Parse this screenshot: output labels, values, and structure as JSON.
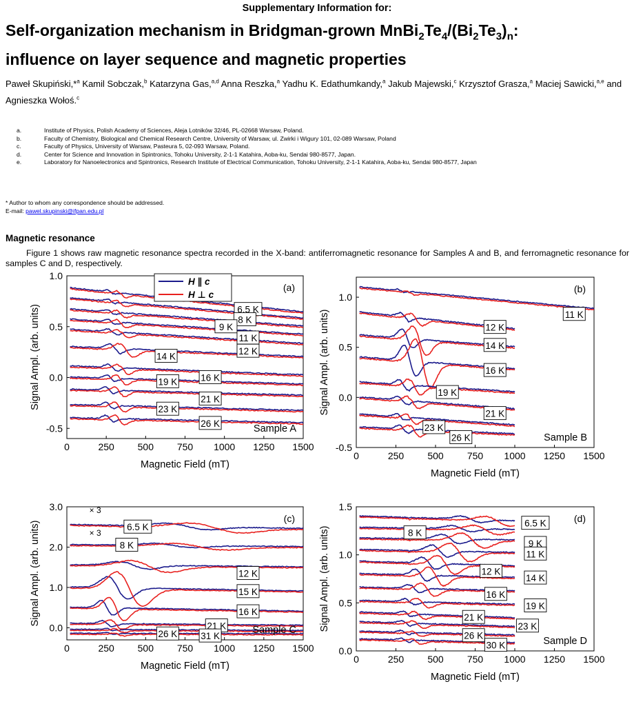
{
  "header": {
    "suptitle": "Supplementary Information for:",
    "title_line1_pre": "Self-organization mechanism in Bridgman-grown MnBi",
    "title_sub_2": "2",
    "title_te": "Te",
    "title_sub_4": "4",
    "title_mid": "/(Bi",
    "title_sub_2b": "2",
    "title_te2": "Te",
    "title_sub_3": "3",
    "title_close": ")",
    "title_sub_n": "n",
    "title_colon": ":",
    "title_line2": "influence on layer sequence and magnetic properties"
  },
  "authors": [
    {
      "name": "Paweł Skupiński,*",
      "sup": "a"
    },
    {
      "name": "Kamil Sobczak,",
      "sup": "b"
    },
    {
      "name": "Katarzyna Gas,",
      "sup": "a,d"
    },
    {
      "name": "Anna Reszka,",
      "sup": "a"
    },
    {
      "name": "Yadhu K. Edathumkandy,",
      "sup": "a"
    },
    {
      "name": "Jakub Majewski,",
      "sup": "c"
    },
    {
      "name": "Krzysztof Grasza,",
      "sup": "a"
    },
    {
      "name": "Maciej Sawicki,",
      "sup": "a,e"
    },
    {
      "name": "and Agnieszka Wołoś.",
      "sup": "c"
    }
  ],
  "affiliations": [
    {
      "key": "a.",
      "text": "Institute of Physics, Polish Academy of Sciences, Aleja Lotników 32/46, PL-02668 Warsaw, Poland."
    },
    {
      "key": "b.",
      "text": "Faculty of Chemistry, Biological and Chemical Research Centre, University of Warsaw, ul. Zwirki i Wigury 101, 02-089 Warsaw, Poland"
    },
    {
      "key": "c.",
      "text": "Faculty of Physics, University of Warsaw, Pasteura 5, 02-093 Warsaw, Poland."
    },
    {
      "key": "d.",
      "text": "Center for Science and Innovation in Spintronics, Tohoku University, 2-1-1 Katahira, Aoba-ku, Sendai 980-8577, Japan."
    },
    {
      "key": "e.",
      "text": "Laboratory for Nanoelectronics and Spintronics, Research Institute of Electrical Communication, Tohoku University, 2-1-1 Katahira, Aoba-ku, Sendai 980-8577, Japan"
    }
  ],
  "correspondence": "* Author to whom any correspondence should be addressed.",
  "email_label": "E-mail: ",
  "email": "pawel.skupinski@ifpan.edu.pl",
  "section_title": "Magnetic resonance",
  "paragraph": "Figure 1 shows raw magnetic resonance spectra recorded in the X-band: antiferromagnetic resonance for Samples  A and B, and ferromagnetic resonance for samples C and D, respectively.",
  "figure": {
    "colors": {
      "parallel": "#1a1a8c",
      "perp": "#e8201e"
    },
    "legend": {
      "parallel": "H ∥ c",
      "perp": "H ⊥ c"
    },
    "xlabel": "Magnetic Field (mT)",
    "ylabel": "Signal Ampl. (arb. units)",
    "panels": [
      {
        "id": "a",
        "panel_label": "(a)",
        "sample_label": "Sample A",
        "xlim": [
          0,
          1500
        ],
        "ylim": [
          -0.6,
          1.0
        ],
        "xticks": [
          "0",
          "250",
          "500",
          "750",
          "1000",
          "1250",
          "1500"
        ],
        "yticks": [
          {
            "v": 1.0,
            "t": "1.0"
          },
          {
            "v": 0.5,
            "t": "0.5"
          },
          {
            "v": 0.0,
            "t": "0.0"
          },
          {
            "v": -0.5,
            "t": "-0.5"
          }
        ],
        "xmax_data": 1500,
        "traces": [
          {
            "T": "6.5 K",
            "offset": 0.88,
            "end": 0.64,
            "amp": 0.03,
            "x0": 330,
            "w": 35
          },
          {
            "T": "8 K",
            "offset": 0.78,
            "end": 0.58,
            "amp": 0.03,
            "x0": 330,
            "w": 35
          },
          {
            "T": "9 K",
            "offset": 0.67,
            "end": 0.5,
            "amp": 0.035,
            "x0": 330,
            "w": 38
          },
          {
            "T": "11 K",
            "offset": 0.57,
            "end": 0.42,
            "amp": 0.04,
            "x0": 330,
            "w": 40
          },
          {
            "T": "12 K",
            "offset": 0.47,
            "end": 0.33,
            "amp": 0.04,
            "x0": 340,
            "w": 45
          },
          {
            "T": "14 K",
            "offset": 0.3,
            "end": 0.2,
            "amp": 0.07,
            "x0": 360,
            "w": 55
          },
          {
            "T": "16 K",
            "offset": 0.11,
            "end": 0.02,
            "amp": 0.05,
            "x0": 340,
            "w": 45
          },
          {
            "T": "19 K",
            "offset": 0.0,
            "end": -0.07,
            "amp": 0.05,
            "x0": 330,
            "w": 40
          },
          {
            "T": "21 K",
            "offset": -0.12,
            "end": -0.18,
            "amp": 0.05,
            "x0": 320,
            "w": 40
          },
          {
            "T": "23 K",
            "offset": -0.27,
            "end": -0.33,
            "amp": 0.05,
            "x0": 320,
            "w": 40
          },
          {
            "T": "26 K",
            "offset": -0.4,
            "end": -0.45,
            "amp": 0.05,
            "x0": 320,
            "w": 40
          }
        ],
        "labels": [
          {
            "T": "6.5 K",
            "x": 1150,
            "y": 0.67
          },
          {
            "T": "8 K",
            "x": 1130,
            "y": 0.57
          },
          {
            "T": "9 K",
            "x": 1010,
            "y": 0.5
          },
          {
            "T": "11 K",
            "x": 1150,
            "y": 0.39
          },
          {
            "T": "12 K",
            "x": 1150,
            "y": 0.26
          },
          {
            "T": "14 K",
            "x": 630,
            "y": 0.21
          },
          {
            "T": "16 K",
            "x": 910,
            "y": 0.0
          },
          {
            "T": "19 K",
            "x": 640,
            "y": -0.04
          },
          {
            "T": "21 K",
            "x": 910,
            "y": -0.21
          },
          {
            "T": "23 K",
            "x": 640,
            "y": -0.31
          },
          {
            "T": "26 K",
            "x": 910,
            "y": -0.45
          }
        ]
      },
      {
        "id": "b",
        "panel_label": "(b)",
        "sample_label": "Sample B",
        "xlim": [
          0,
          1500
        ],
        "ylim": [
          -0.5,
          1.2
        ],
        "xticks": [
          "0",
          "250",
          "500",
          "750",
          "1000",
          "1250",
          "1500"
        ],
        "yticks": [
          {
            "v": 1.0,
            "t": "1.0"
          },
          {
            "v": 0.5,
            "t": "0.5"
          },
          {
            "v": 0.0,
            "t": "0.0"
          },
          {
            "v": -0.5,
            "t": "-0.5"
          }
        ],
        "xmax_data": 1000,
        "traces": [
          {
            "T": "11 K",
            "offset": 1.1,
            "end": 0.88,
            "amp": 0.02,
            "x0": 330,
            "w": 30,
            "xmax": 1500
          },
          {
            "T": "12 K",
            "offset": 0.85,
            "end": 0.68,
            "amp": 0.06,
            "x0": 360,
            "w": 45
          },
          {
            "T": "14 K",
            "offset": 0.62,
            "end": 0.5,
            "amp": 0.15,
            "x0": 380,
            "w": 55
          },
          {
            "T": "16 K",
            "offset": 0.4,
            "end": 0.28,
            "amp": 0.25,
            "x0": 400,
            "w": 60
          },
          {
            "T": "19 K",
            "offset": 0.15,
            "end": 0.05,
            "amp": 0.08,
            "x0": 350,
            "w": 45
          },
          {
            "T": "21 K",
            "offset": 0.0,
            "end": -0.12,
            "amp": 0.06,
            "x0": 340,
            "w": 45
          },
          {
            "T": "23 K",
            "offset": -0.17,
            "end": -0.28,
            "amp": 0.05,
            "x0": 330,
            "w": 40
          },
          {
            "T": "26 K",
            "offset": -0.3,
            "end": -0.37,
            "amp": 0.06,
            "x0": 350,
            "w": 45
          }
        ],
        "labels": [
          {
            "T": "11 K",
            "x": 1375,
            "y": 0.83
          },
          {
            "T": "12 K",
            "x": 875,
            "y": 0.7
          },
          {
            "T": "14 K",
            "x": 875,
            "y": 0.52
          },
          {
            "T": "16 K",
            "x": 875,
            "y": 0.27
          },
          {
            "T": "19 K",
            "x": 575,
            "y": 0.05
          },
          {
            "T": "21 K",
            "x": 875,
            "y": -0.16
          },
          {
            "T": "23 K",
            "x": 490,
            "y": -0.3
          },
          {
            "T": "26 K",
            "x": 660,
            "y": -0.4
          }
        ]
      },
      {
        "id": "c",
        "panel_label": "(c)",
        "sample_label": "Sample C",
        "xlim": [
          0,
          1500
        ],
        "ylim": [
          -0.3,
          3.0
        ],
        "xticks": [
          "0",
          "250",
          "500",
          "750",
          "1000",
          "1250",
          "1500"
        ],
        "yticks": [
          {
            "v": 3.0,
            "t": "3.0"
          },
          {
            "v": 2.0,
            "t": "2.0"
          },
          {
            "v": 1.0,
            "t": "1.0"
          },
          {
            "v": 0.0,
            "t": "0.0"
          }
        ],
        "xmax_data": 1500,
        "traces": [
          {
            "T": "6.5 K",
            "offset": 2.55,
            "end": 2.45,
            "amp": 0.12,
            "x0": 900,
            "w": 200
          },
          {
            "T": "8 K",
            "offset": 2.05,
            "end": 2.0,
            "amp": 0.08,
            "x0": 800,
            "w": 200
          },
          {
            "T": "12 K",
            "offset": 1.55,
            "end": 1.5,
            "amp": 0.15,
            "x0": 500,
            "w": 150
          },
          {
            "T": "15 K",
            "offset": 1.0,
            "end": 0.9,
            "amp": 0.45,
            "x0": 380,
            "w": 100
          },
          {
            "T": "16 K",
            "offset": 0.5,
            "end": 0.4,
            "amp": 0.3,
            "x0": 300,
            "w": 60
          },
          {
            "T": "21 K",
            "offset": 0.1,
            "end": 0.05,
            "amp": 0.12,
            "x0": 300,
            "w": 50
          },
          {
            "T": "26 K",
            "offset": -0.05,
            "end": -0.08,
            "amp": 0.05,
            "x0": 320,
            "w": 40
          },
          {
            "T": "31 K",
            "offset": -0.15,
            "end": -0.16,
            "amp": 0.04,
            "x0": 320,
            "w": 40
          }
        ],
        "labels": [
          {
            "T": "6.5 K",
            "x": 450,
            "y": 2.5
          },
          {
            "T": "8 K",
            "x": 380,
            "y": 2.05
          },
          {
            "T": "12 K",
            "x": 1150,
            "y": 1.35
          },
          {
            "T": "15 K",
            "x": 1150,
            "y": 0.9
          },
          {
            "T": "16 K",
            "x": 1150,
            "y": 0.4
          },
          {
            "T": "21 K",
            "x": 950,
            "y": 0.05
          },
          {
            "T": "26 K",
            "x": 640,
            "y": -0.15
          },
          {
            "T": "31 K",
            "x": 910,
            "y": -0.2
          }
        ],
        "annotations": [
          {
            "text": "× 3",
            "x": 180,
            "y": 2.85
          },
          {
            "text": "× 3",
            "x": 180,
            "y": 2.28
          }
        ]
      },
      {
        "id": "d",
        "panel_label": "(d)",
        "sample_label": "Sample D",
        "xlim": [
          0,
          1500
        ],
        "ylim": [
          0.0,
          1.5
        ],
        "xticks": [
          "0",
          "250",
          "500",
          "750",
          "1000",
          "1250",
          "1500"
        ],
        "yticks": [
          {
            "v": 1.5,
            "t": "1.5"
          },
          {
            "v": 1.0,
            "t": "1.0"
          },
          {
            "v": 0.5,
            "t": "0.5"
          },
          {
            "v": 0.0,
            "t": "0.0"
          }
        ],
        "xmax_data": 1000,
        "traces": [
          {
            "T": "6.5 K",
            "offset": 1.4,
            "end": 1.35,
            "amp": 0.05,
            "x0": 850,
            "w": 100
          },
          {
            "T": "8 K",
            "offset": 1.28,
            "end": 1.26,
            "amp": 0.05,
            "x0": 780,
            "w": 100
          },
          {
            "T": "9 K",
            "offset": 1.17,
            "end": 1.15,
            "amp": 0.08,
            "x0": 700,
            "w": 90
          },
          {
            "T": "11 K",
            "offset": 1.05,
            "end": 1.02,
            "amp": 0.1,
            "x0": 620,
            "w": 80
          },
          {
            "T": "12 K",
            "offset": 0.93,
            "end": 0.88,
            "amp": 0.1,
            "x0": 540,
            "w": 70
          },
          {
            "T": "14 K",
            "offset": 0.8,
            "end": 0.76,
            "amp": 0.1,
            "x0": 480,
            "w": 60
          },
          {
            "T": "16 K",
            "offset": 0.66,
            "end": 0.62,
            "amp": 0.07,
            "x0": 430,
            "w": 55
          },
          {
            "T": "19 K",
            "offset": 0.52,
            "end": 0.48,
            "amp": 0.05,
            "x0": 400,
            "w": 50
          },
          {
            "T": "21 K",
            "offset": 0.4,
            "end": 0.34,
            "amp": 0.04,
            "x0": 380,
            "w": 45
          },
          {
            "T": "23 K",
            "offset": 0.3,
            "end": 0.25,
            "amp": 0.04,
            "x0": 370,
            "w": 45
          },
          {
            "T": "26 K",
            "offset": 0.2,
            "end": 0.16,
            "amp": 0.03,
            "x0": 360,
            "w": 40
          },
          {
            "T": "30 K",
            "offset": 0.12,
            "end": 0.08,
            "amp": 0.03,
            "x0": 360,
            "w": 40
          }
        ],
        "labels": [
          {
            "T": "6.5 K",
            "x": 1130,
            "y": 1.33
          },
          {
            "T": "8 K",
            "x": 370,
            "y": 1.23
          },
          {
            "T": "9 K",
            "x": 1130,
            "y": 1.12
          },
          {
            "T": "11 K",
            "x": 1130,
            "y": 1.01
          },
          {
            "T": "12 K",
            "x": 850,
            "y": 0.83
          },
          {
            "T": "14 K",
            "x": 1130,
            "y": 0.76
          },
          {
            "T": "16 K",
            "x": 880,
            "y": 0.59
          },
          {
            "T": "19 K",
            "x": 1130,
            "y": 0.47
          },
          {
            "T": "21 K",
            "x": 740,
            "y": 0.35
          },
          {
            "T": "23 K",
            "x": 1080,
            "y": 0.26
          },
          {
            "T": "26 K",
            "x": 740,
            "y": 0.16
          },
          {
            "T": "30 K",
            "x": 880,
            "y": 0.06
          }
        ]
      }
    ]
  }
}
